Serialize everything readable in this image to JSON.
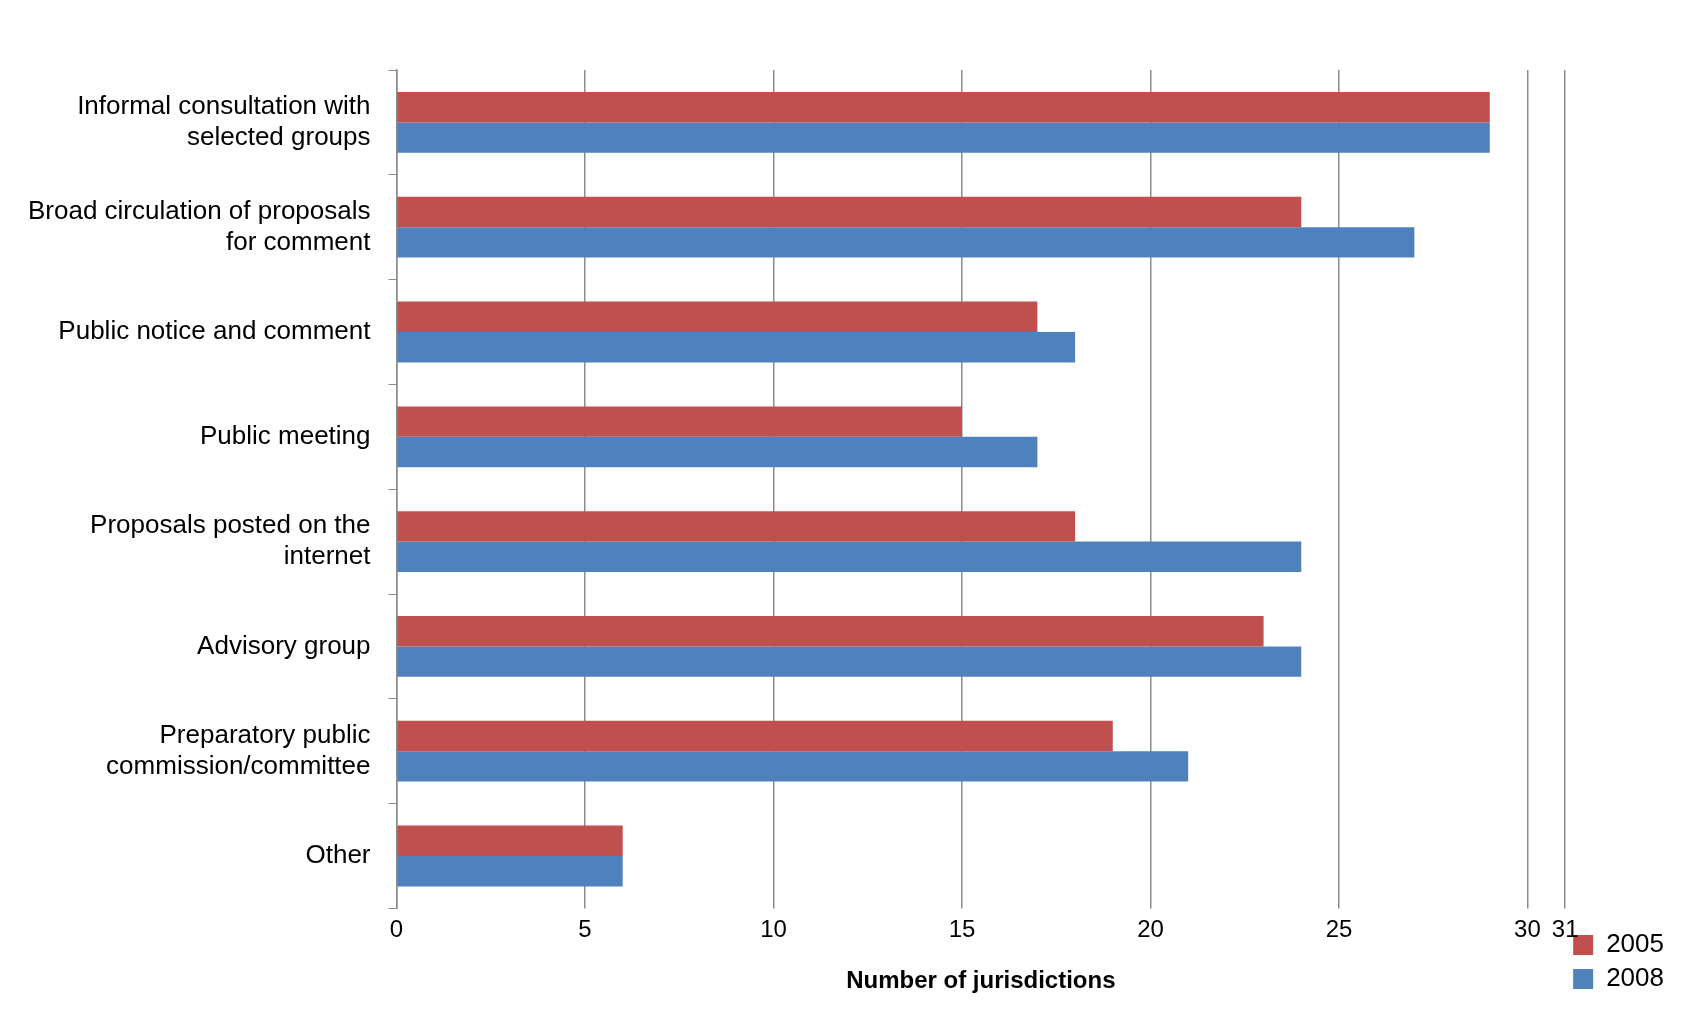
{
  "chart_data": {
    "type": "bar",
    "orientation": "horizontal",
    "xlabel": "Number of jurisdictions",
    "categories": [
      "Informal consultation with selected groups",
      "Broad circulation of proposals for comment",
      "Public notice and comment",
      "Public meeting",
      "Proposals posted on the internet",
      "Advisory group",
      "Preparatory public commission/committee",
      "Other"
    ],
    "series": [
      {
        "name": "2005",
        "color": "#c0504d",
        "values": [
          29,
          24,
          17,
          15,
          18,
          23,
          19,
          6
        ]
      },
      {
        "name": "2008",
        "color": "#4f81bd",
        "values": [
          29,
          27,
          18,
          17,
          24,
          24,
          21,
          6
        ]
      }
    ],
    "xlim": [
      0,
      31
    ],
    "xticks": [
      0,
      5,
      10,
      15,
      20,
      25,
      30,
      31
    ],
    "grid": "x",
    "legend": "bottom right"
  }
}
